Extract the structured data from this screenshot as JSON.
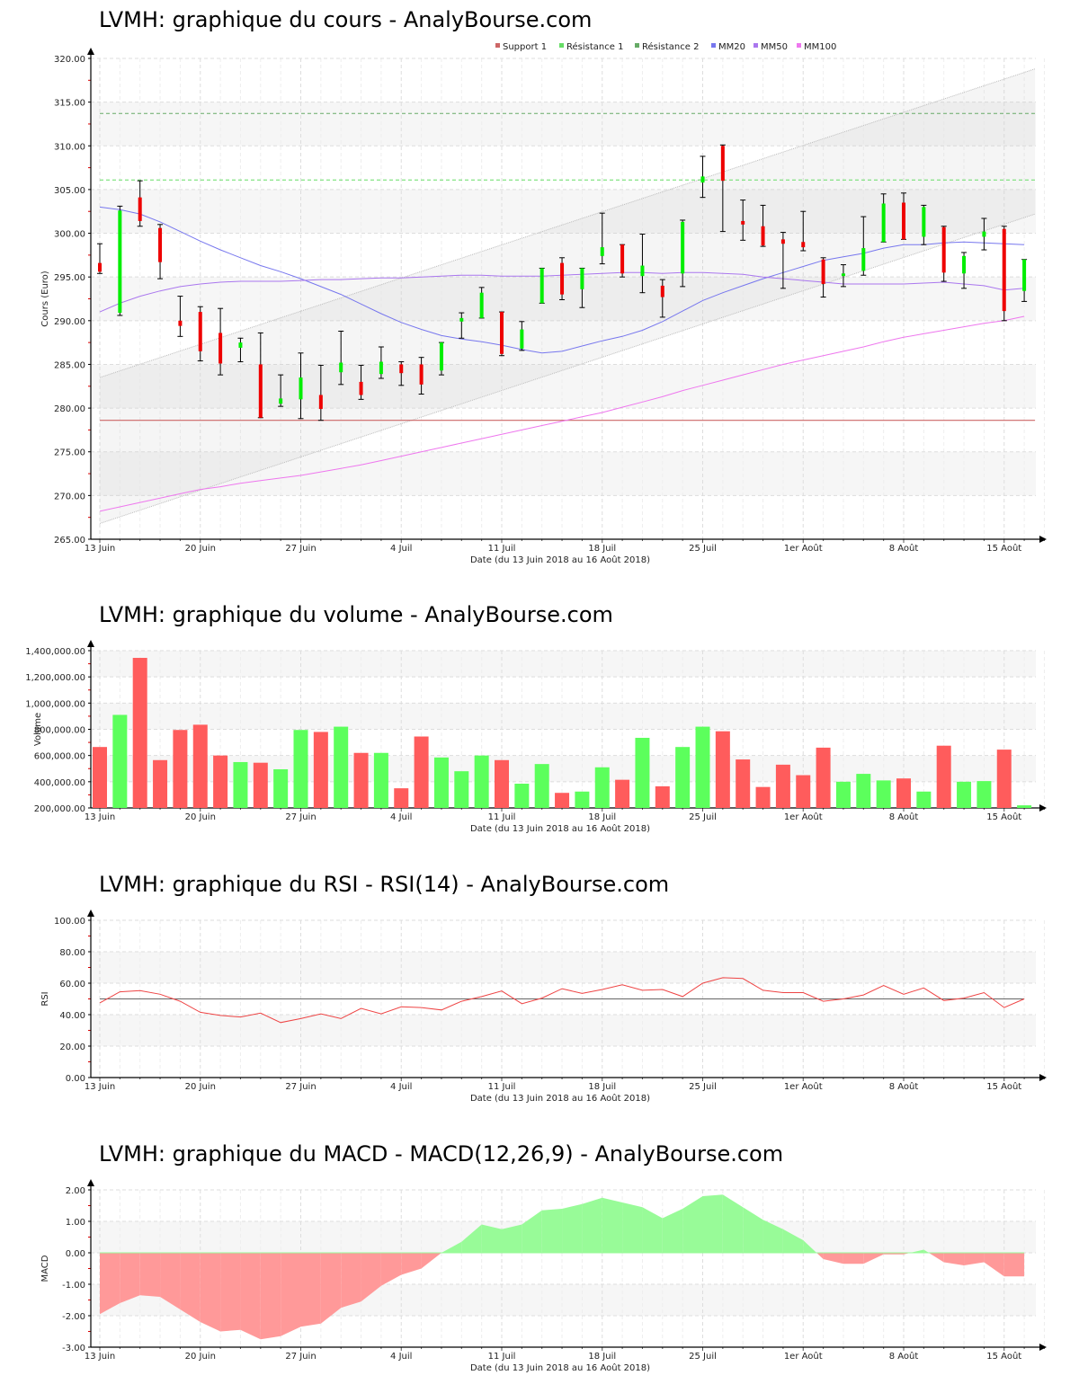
{
  "charts": {
    "price": {
      "title": "LVMH: graphique du cours - AnalyBourse.com"
    },
    "volume": {
      "title": "LVMH: graphique du volume - AnalyBourse.com"
    },
    "rsi": {
      "title": "LVMH: graphique du RSI - RSI(14) - AnalyBourse.com"
    },
    "macd": {
      "title": "LVMH: graphique du MACD - MACD(12,26,9) - AnalyBourse.com"
    }
  },
  "xaxis": {
    "label": "Date (du 13 Juin 2018 au 16 Août 2018)",
    "ticks": [
      "13 Juin",
      "20 Juin",
      "27 Juin",
      "4 Juil",
      "11 Juil",
      "18 Juil",
      "25 Juil",
      "1er Août",
      "8 Août",
      "15 Août"
    ]
  },
  "colors": {
    "up": "#00ee00",
    "down": "#ee0000",
    "support": "#cc6666",
    "resistance1": "#66dd66",
    "resistance2": "#66aa66",
    "mm20": "#7777ee",
    "mm50": "#aa77ee",
    "mm100": "#ee77ee",
    "vol_up": "#5cff5c",
    "vol_down": "#ff5c5c",
    "macd_pos": "#98fb98",
    "macd_neg": "#ff9999",
    "rsi_line": "#ee4444"
  },
  "chart_data": [
    {
      "type": "candlestick",
      "title": "LVMH: graphique du cours - AnalyBourse.com",
      "xlabel": "Date (du 13 Juin 2018 au 16 Août 2018)",
      "ylabel": "Cours (Euro)",
      "ylim": [
        265,
        320
      ],
      "yticks": [
        "265.00",
        "270.00",
        "275.00",
        "280.00",
        "285.00",
        "290.00",
        "295.00",
        "300.00",
        "305.00",
        "310.00",
        "315.00",
        "320.00"
      ],
      "legend": [
        "Support 1",
        "Résistance 1",
        "Résistance 2",
        "MM20",
        "MM50",
        "MM100"
      ],
      "legend_position": "top-right",
      "levels": {
        "support1": 278.6,
        "resistance1": 306.1,
        "resistance2": 313.7
      },
      "candles": [
        {
          "date": "13 Juin",
          "open": 296.6,
          "high": 298.8,
          "low": 295.4,
          "close": 295.6
        },
        {
          "date": "14 Juin",
          "open": 290.9,
          "high": 303.1,
          "low": 290.6,
          "close": 302.6
        },
        {
          "date": "15 Juin",
          "open": 304.1,
          "high": 306.0,
          "low": 300.8,
          "close": 301.4
        },
        {
          "date": "18 Juin",
          "open": 300.6,
          "high": 301.0,
          "low": 294.8,
          "close": 296.7
        },
        {
          "date": "19 Juin",
          "open": 290.0,
          "high": 292.8,
          "low": 288.2,
          "close": 289.4
        },
        {
          "date": "20 Juin",
          "open": 291.0,
          "high": 291.6,
          "low": 285.4,
          "close": 286.5
        },
        {
          "date": "21 Juin",
          "open": 288.6,
          "high": 291.4,
          "low": 283.8,
          "close": 285.1
        },
        {
          "date": "22 Juin",
          "open": 286.9,
          "high": 288.0,
          "low": 285.3,
          "close": 287.5
        },
        {
          "date": "25 Juin",
          "open": 285.0,
          "high": 288.6,
          "low": 278.9,
          "close": 278.9
        },
        {
          "date": "26 Juin",
          "open": 280.5,
          "high": 283.8,
          "low": 280.2,
          "close": 281.1
        },
        {
          "date": "27 Juin",
          "open": 281.0,
          "high": 286.3,
          "low": 278.8,
          "close": 283.5
        },
        {
          "date": "28 Juin",
          "open": 281.5,
          "high": 284.9,
          "low": 278.6,
          "close": 279.9
        },
        {
          "date": "29 Juin",
          "open": 284.1,
          "high": 288.8,
          "low": 282.7,
          "close": 285.2
        },
        {
          "date": "2 Juil",
          "open": 283.0,
          "high": 284.9,
          "low": 281.0,
          "close": 281.5
        },
        {
          "date": "3 Juil",
          "open": 283.9,
          "high": 287.0,
          "low": 283.4,
          "close": 285.3
        },
        {
          "date": "4 Juil",
          "open": 285.0,
          "high": 285.3,
          "low": 282.6,
          "close": 284.0
        },
        {
          "date": "5 Juil",
          "open": 285.0,
          "high": 285.8,
          "low": 281.6,
          "close": 282.7
        },
        {
          "date": "6 Juil",
          "open": 284.3,
          "high": 287.5,
          "low": 283.8,
          "close": 287.5
        },
        {
          "date": "9 Juil",
          "open": 289.9,
          "high": 290.9,
          "low": 288.0,
          "close": 290.3
        },
        {
          "date": "10 Juil",
          "open": 290.3,
          "high": 293.8,
          "low": 290.3,
          "close": 293.2
        },
        {
          "date": "11 Juil",
          "open": 291.0,
          "high": 291.0,
          "low": 286.0,
          "close": 286.2
        },
        {
          "date": "12 Juil",
          "open": 286.8,
          "high": 289.9,
          "low": 286.6,
          "close": 289.0
        },
        {
          "date": "13 Juil",
          "open": 292.0,
          "high": 296.0,
          "low": 292.0,
          "close": 296.0
        },
        {
          "date": "16 Juil",
          "open": 296.6,
          "high": 297.2,
          "low": 292.4,
          "close": 293.0
        },
        {
          "date": "17 Juil",
          "open": 293.6,
          "high": 296.0,
          "low": 291.5,
          "close": 296.0
        },
        {
          "date": "18 Juil",
          "open": 297.4,
          "high": 302.3,
          "low": 296.5,
          "close": 298.4
        },
        {
          "date": "19 Juil",
          "open": 298.7,
          "high": 298.7,
          "low": 295.0,
          "close": 295.4
        },
        {
          "date": "20 Juil",
          "open": 295.1,
          "high": 299.9,
          "low": 293.2,
          "close": 296.3
        },
        {
          "date": "23 Juil",
          "open": 294.0,
          "high": 294.7,
          "low": 290.4,
          "close": 292.7
        },
        {
          "date": "24 Juil",
          "open": 295.4,
          "high": 301.5,
          "low": 293.9,
          "close": 301.3
        },
        {
          "date": "25 Juil",
          "open": 305.8,
          "high": 308.8,
          "low": 304.1,
          "close": 306.5
        },
        {
          "date": "26 Juil",
          "open": 310.0,
          "high": 310.1,
          "low": 300.2,
          "close": 306.0
        },
        {
          "date": "27 Juil",
          "open": 301.4,
          "high": 303.8,
          "low": 299.2,
          "close": 301.0
        },
        {
          "date": "30 Juil",
          "open": 300.8,
          "high": 303.2,
          "low": 298.5,
          "close": 298.6
        },
        {
          "date": "31 Juil",
          "open": 299.3,
          "high": 300.1,
          "low": 293.7,
          "close": 298.8
        },
        {
          "date": "1 Août",
          "open": 299.0,
          "high": 302.5,
          "low": 298.0,
          "close": 298.4
        },
        {
          "date": "2 Août",
          "open": 297.0,
          "high": 297.2,
          "low": 292.7,
          "close": 294.2
        },
        {
          "date": "3 Août",
          "open": 295.1,
          "high": 296.4,
          "low": 293.9,
          "close": 295.4
        },
        {
          "date": "6 Août",
          "open": 295.7,
          "high": 301.9,
          "low": 295.2,
          "close": 298.3
        },
        {
          "date": "7 Août",
          "open": 299.0,
          "high": 304.5,
          "low": 299.0,
          "close": 303.4
        },
        {
          "date": "8 Août",
          "open": 303.5,
          "high": 304.6,
          "low": 299.3,
          "close": 299.3
        },
        {
          "date": "9 Août",
          "open": 299.6,
          "high": 303.2,
          "low": 298.7,
          "close": 303.0
        },
        {
          "date": "10 Août",
          "open": 300.7,
          "high": 300.8,
          "low": 294.5,
          "close": 295.5
        },
        {
          "date": "13 Août",
          "open": 295.4,
          "high": 297.8,
          "low": 293.7,
          "close": 297.4
        },
        {
          "date": "14 Août",
          "open": 299.6,
          "high": 301.7,
          "low": 298.1,
          "close": 300.2
        },
        {
          "date": "15 Août",
          "open": 300.5,
          "high": 300.8,
          "low": 290.0,
          "close": 291.1
        },
        {
          "date": "16 Août",
          "open": 293.4,
          "high": 297.0,
          "low": 292.2,
          "close": 297.0
        }
      ],
      "series": [
        {
          "name": "MM20",
          "values": [
            303.0,
            302.7,
            302.2,
            301.3,
            300.2,
            299.1,
            298.1,
            297.2,
            296.3,
            295.6,
            294.8,
            293.9,
            293.0,
            291.9,
            290.8,
            289.8,
            289.0,
            288.3,
            287.9,
            287.6,
            287.2,
            286.7,
            286.3,
            286.5,
            287.1,
            287.7,
            288.2,
            288.9,
            289.9,
            291.1,
            292.3,
            293.2,
            294.0,
            294.8,
            295.5,
            296.2,
            296.9,
            297.3,
            297.7,
            298.3,
            298.7,
            298.7,
            298.9,
            299.0,
            298.9,
            298.8,
            298.7
          ]
        },
        {
          "name": "MM50",
          "values": [
            291.0,
            292.0,
            292.8,
            293.4,
            293.9,
            294.2,
            294.4,
            294.5,
            294.5,
            294.5,
            294.6,
            294.7,
            294.7,
            294.8,
            294.9,
            294.9,
            295.0,
            295.1,
            295.2,
            295.2,
            295.1,
            295.1,
            295.1,
            295.2,
            295.3,
            295.4,
            295.5,
            295.5,
            295.4,
            295.5,
            295.5,
            295.4,
            295.3,
            295.0,
            294.8,
            294.6,
            294.4,
            294.2,
            294.2,
            294.2,
            294.2,
            294.3,
            294.4,
            294.2,
            294.0,
            293.5,
            293.7
          ]
        },
        {
          "name": "MM100",
          "values": [
            268.2,
            268.7,
            269.2,
            269.7,
            270.2,
            270.7,
            271.0,
            271.4,
            271.7,
            272.0,
            272.3,
            272.7,
            273.1,
            273.5,
            274.0,
            274.5,
            275.0,
            275.5,
            276.0,
            276.5,
            277.0,
            277.5,
            278.0,
            278.5,
            279.0,
            279.5,
            280.1,
            280.7,
            281.3,
            282.0,
            282.6,
            283.2,
            283.8,
            284.4,
            285.0,
            285.5,
            286.0,
            286.5,
            287.0,
            287.6,
            288.1,
            288.5,
            288.9,
            289.3,
            289.7,
            290.0,
            290.5
          ]
        }
      ],
      "trend_channel": {
        "upper": [
          283.5,
          318.8
        ],
        "lower": [
          266.8,
          302.2
        ]
      }
    },
    {
      "type": "bar",
      "title": "LVMH: graphique du volume - AnalyBourse.com",
      "xlabel": "Date (du 13 Juin 2018 au 16 Août 2018)",
      "ylabel": "Volume",
      "ylim": [
        200000,
        1400000
      ],
      "yticks": [
        "200,000.00",
        "400,000.00",
        "600,000.00",
        "800,000.00",
        "1,000,000.00",
        "1,200,000.00",
        "1,400,000.00"
      ],
      "values": [
        665000,
        910000,
        1345000,
        565000,
        795000,
        835000,
        600000,
        550000,
        545000,
        495000,
        795000,
        780000,
        820000,
        620000,
        620000,
        350000,
        745000,
        585000,
        480000,
        600000,
        565000,
        385000,
        535000,
        315000,
        325000,
        510000,
        415000,
        735000,
        365000,
        665000,
        820000,
        785000,
        570000,
        360000,
        530000,
        450000,
        660000,
        400000,
        460000,
        410000,
        425000,
        325000,
        675000,
        400000,
        405000,
        645000,
        220000
      ],
      "colors": [
        "down",
        "up",
        "down",
        "down",
        "down",
        "down",
        "down",
        "up",
        "down",
        "up",
        "up",
        "down",
        "up",
        "down",
        "up",
        "down",
        "down",
        "up",
        "up",
        "up",
        "down",
        "up",
        "up",
        "down",
        "up",
        "up",
        "down",
        "up",
        "down",
        "up",
        "up",
        "down",
        "down",
        "down",
        "down",
        "down",
        "down",
        "up",
        "up",
        "up",
        "down",
        "up",
        "down",
        "up",
        "up",
        "down",
        "up"
      ]
    },
    {
      "type": "line",
      "title": "LVMH: graphique du RSI - RSI(14) - AnalyBourse.com",
      "xlabel": "Date (du 13 Juin 2018 au 16 Août 2018)",
      "ylabel": "RSI",
      "ylim": [
        0,
        100
      ],
      "yticks": [
        "0.00",
        "20.00",
        "40.00",
        "60.00",
        "80.00",
        "100.00"
      ],
      "reference_line": 50,
      "series": [
        {
          "name": "RSI(14)",
          "values": [
            47.5,
            54.5,
            55.3,
            53.0,
            48.5,
            41.5,
            39.5,
            38.5,
            41.0,
            35.0,
            37.5,
            40.5,
            37.5,
            44.0,
            40.5,
            45.0,
            44.5,
            43.0,
            48.5,
            51.5,
            55.0,
            47.0,
            50.5,
            56.5,
            53.5,
            56.0,
            59.0,
            55.5,
            56.0,
            51.5,
            60.0,
            63.5,
            63.0,
            55.5,
            54.0,
            54.0,
            48.5,
            50.0,
            52.5,
            58.5,
            53.0,
            57.0,
            49.0,
            50.5,
            54.0,
            44.5,
            50.0
          ]
        }
      ]
    },
    {
      "type": "area",
      "title": "LVMH: graphique du MACD - MACD(12,26,9) - AnalyBourse.com",
      "xlabel": "Date (du 13 Juin 2018 au 16 Août 2018)",
      "ylabel": "MACD",
      "ylim": [
        -3,
        2
      ],
      "yticks": [
        "-3.00",
        "-2.00",
        "-1.00",
        "0.00",
        "1.00",
        "2.00"
      ],
      "series": [
        {
          "name": "MACD(12,26,9)",
          "values": [
            -1.95,
            -1.6,
            -1.35,
            -1.4,
            -1.8,
            -2.2,
            -2.5,
            -2.45,
            -2.75,
            -2.65,
            -2.35,
            -2.25,
            -1.75,
            -1.55,
            -1.05,
            -0.7,
            -0.5,
            0.0,
            0.35,
            0.9,
            0.75,
            0.9,
            1.35,
            1.4,
            1.55,
            1.75,
            1.6,
            1.45,
            1.1,
            1.4,
            1.8,
            1.85,
            1.45,
            1.05,
            0.75,
            0.4,
            -0.2,
            -0.35,
            -0.35,
            -0.05,
            -0.05,
            0.1,
            -0.3,
            -0.4,
            -0.3,
            -0.75,
            -0.75
          ]
        }
      ]
    }
  ]
}
